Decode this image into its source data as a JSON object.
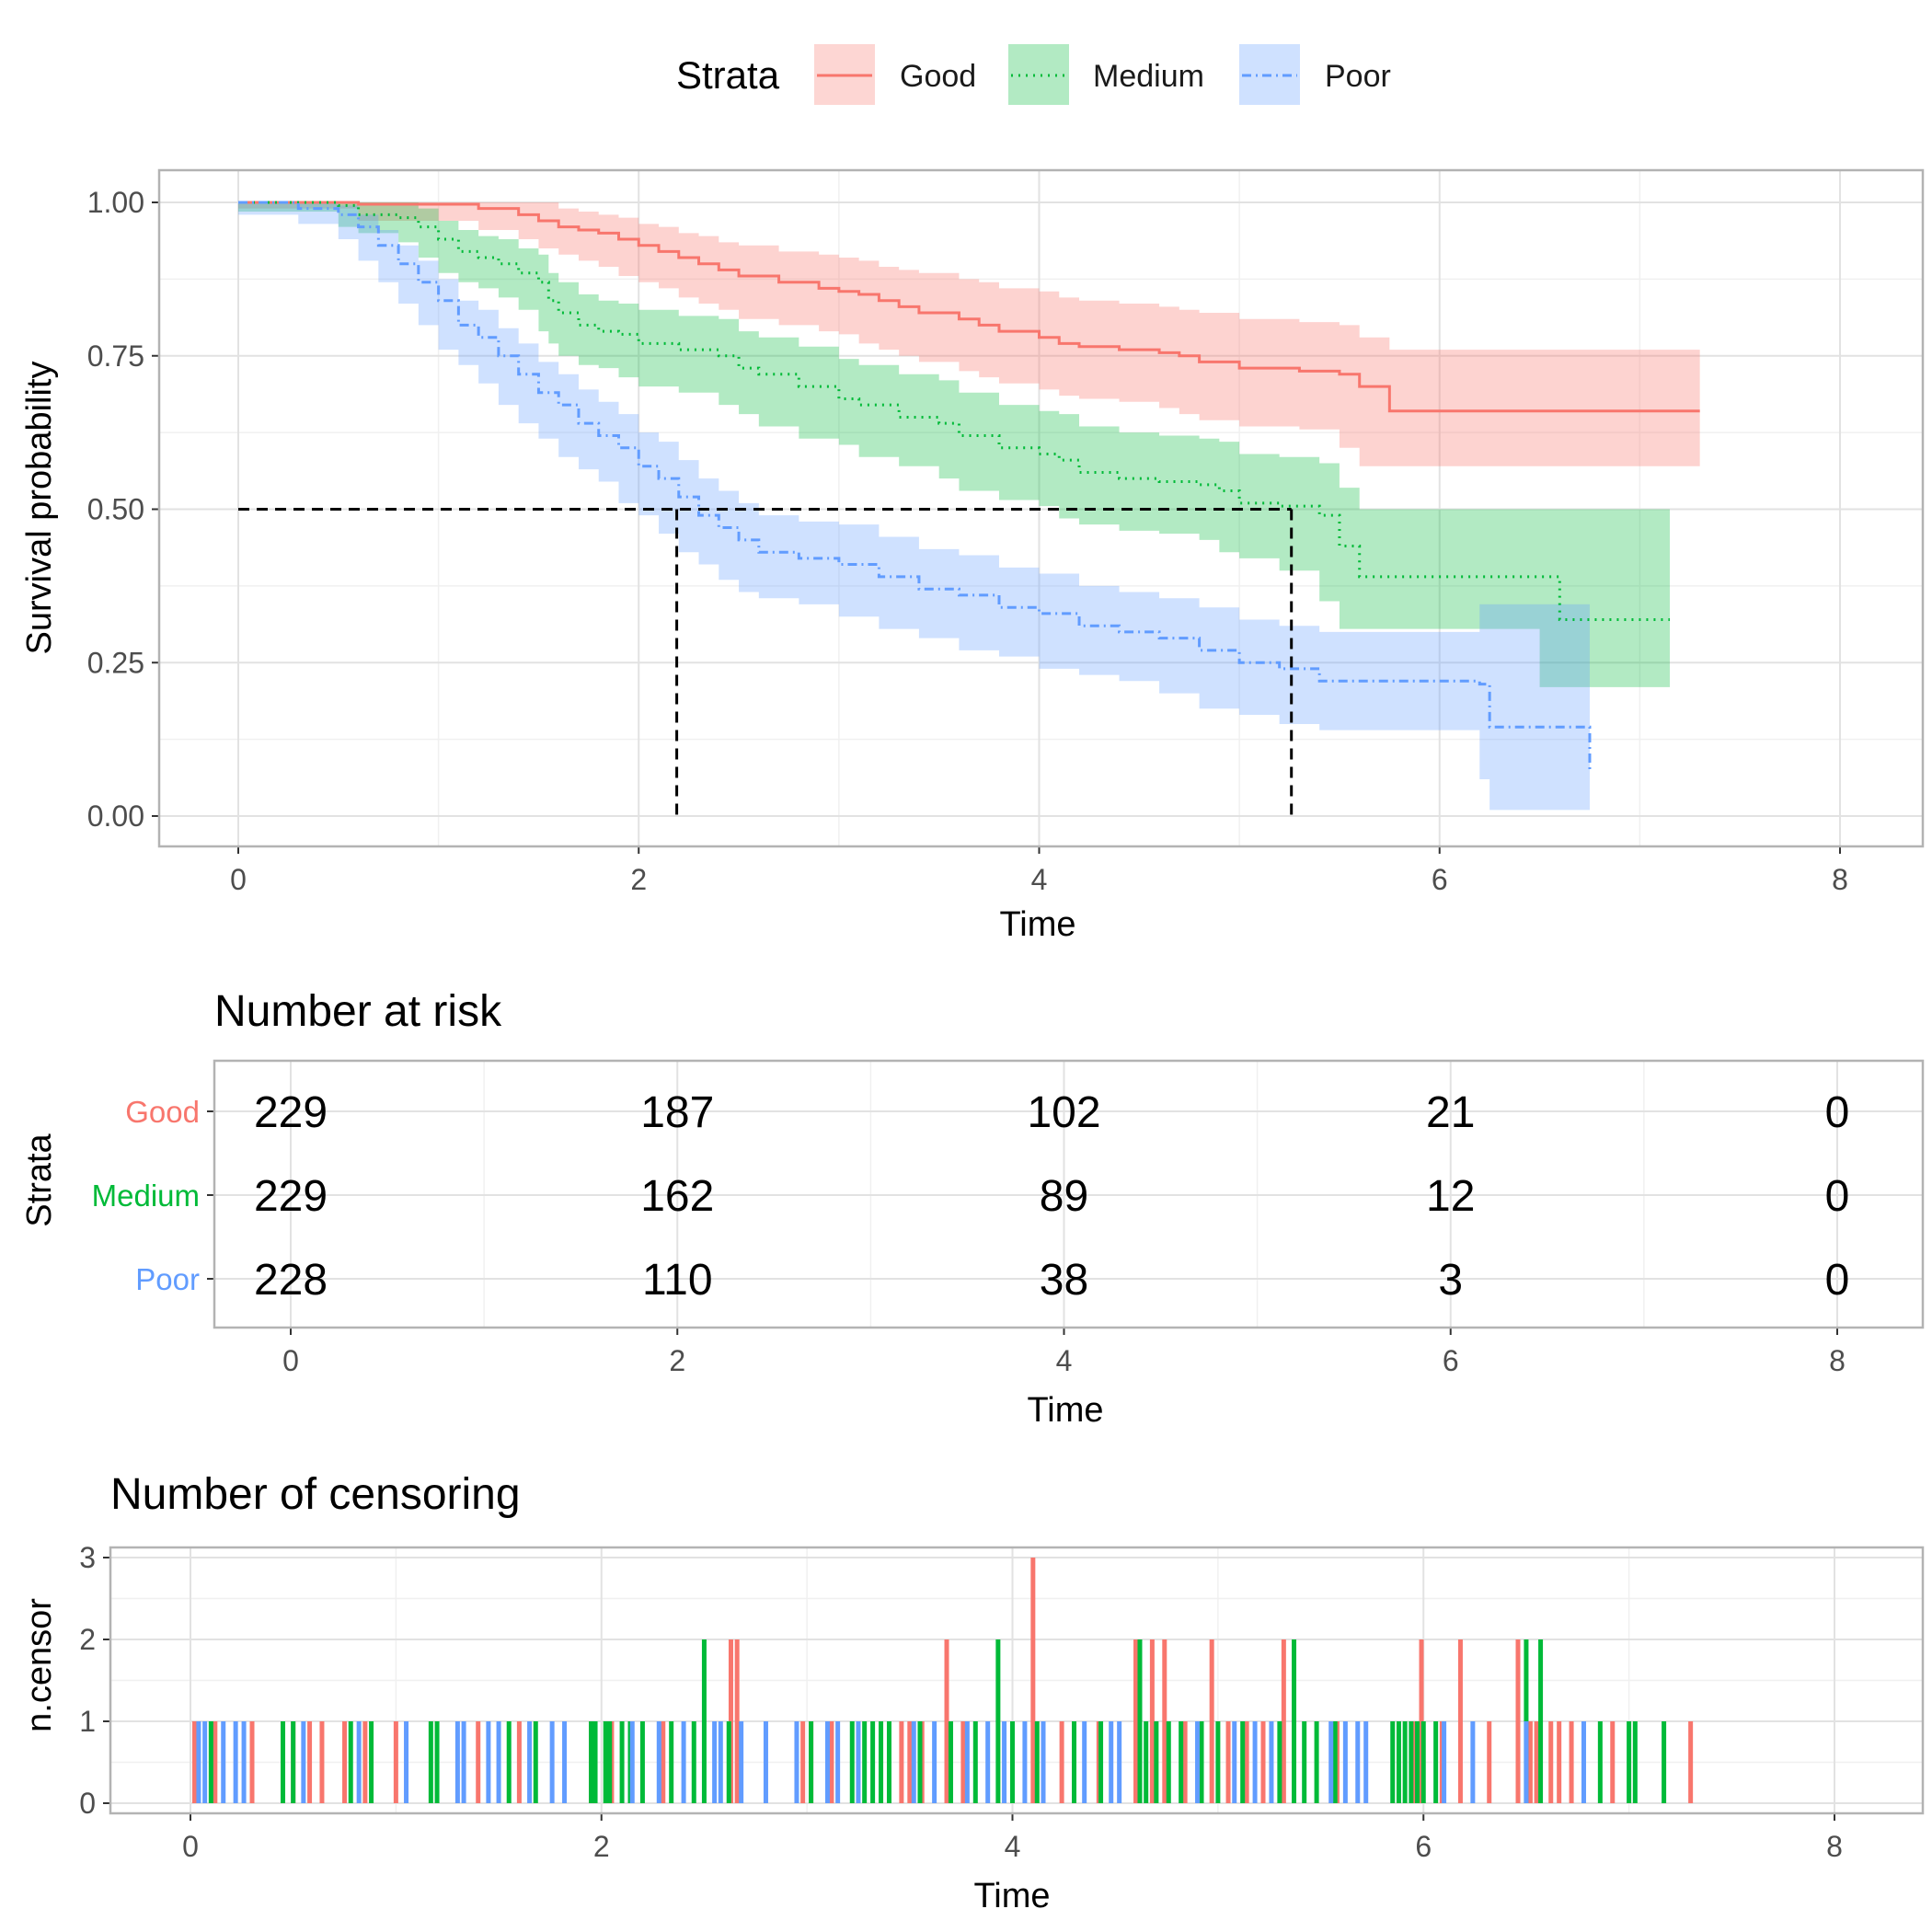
{
  "legend": {
    "title": "Strata",
    "items": [
      {
        "label": "Good",
        "color": "#F8766D",
        "linetype": "solid"
      },
      {
        "label": "Medium",
        "color": "#00BA38",
        "linetype": "dotted"
      },
      {
        "label": "Poor",
        "color": "#619CFF",
        "linetype": "dotdash"
      }
    ],
    "position": "top"
  },
  "chart_data": [
    {
      "type": "line",
      "subtype": "kaplan-meier step",
      "xlabel": "Time",
      "ylabel": "Survival probability",
      "xlim": [
        0,
        8
      ],
      "ylim": [
        0,
        1
      ],
      "x_ticks": [
        "0",
        "2",
        "4",
        "6",
        "8"
      ],
      "y_ticks": [
        "0.00",
        "0.25",
        "0.50",
        "0.75",
        "1.00"
      ],
      "grid": true,
      "median_lines": [
        {
          "x": 2.19,
          "y": 0.5
        },
        {
          "x": 5.26,
          "y": 0.5
        }
      ],
      "series": [
        {
          "name": "Good",
          "color": "#F8766D",
          "linetype": "solid",
          "x": [
            0,
            0.6,
            1.2,
            1.4,
            1.5,
            1.6,
            1.7,
            1.8,
            1.9,
            2.0,
            2.1,
            2.2,
            2.3,
            2.4,
            2.5,
            2.7,
            2.9,
            3.0,
            3.1,
            3.2,
            3.3,
            3.4,
            3.6,
            3.7,
            3.8,
            4.0,
            4.1,
            4.2,
            4.4,
            4.6,
            4.7,
            4.8,
            5.0,
            5.3,
            5.5,
            5.6,
            5.75,
            7.3
          ],
          "y": [
            1.0,
            0.997,
            0.99,
            0.98,
            0.97,
            0.96,
            0.955,
            0.95,
            0.94,
            0.93,
            0.92,
            0.91,
            0.9,
            0.89,
            0.88,
            0.87,
            0.86,
            0.855,
            0.85,
            0.84,
            0.83,
            0.82,
            0.81,
            0.8,
            0.79,
            0.78,
            0.77,
            0.765,
            0.76,
            0.755,
            0.75,
            0.74,
            0.73,
            0.725,
            0.72,
            0.7,
            0.66,
            0.66
          ],
          "lower": [
            1.0,
            0.99,
            0.97,
            0.955,
            0.94,
            0.925,
            0.915,
            0.905,
            0.895,
            0.88,
            0.87,
            0.86,
            0.845,
            0.835,
            0.825,
            0.81,
            0.8,
            0.79,
            0.785,
            0.77,
            0.76,
            0.75,
            0.74,
            0.725,
            0.715,
            0.705,
            0.695,
            0.685,
            0.68,
            0.675,
            0.665,
            0.655,
            0.645,
            0.635,
            0.63,
            0.6,
            0.57,
            0.57
          ],
          "upper": [
            1.0,
            1.0,
            1.0,
            1.0,
            1.0,
            0.99,
            0.985,
            0.98,
            0.975,
            0.965,
            0.96,
            0.95,
            0.945,
            0.935,
            0.93,
            0.92,
            0.915,
            0.91,
            0.905,
            0.895,
            0.89,
            0.885,
            0.875,
            0.87,
            0.86,
            0.855,
            0.845,
            0.84,
            0.835,
            0.83,
            0.825,
            0.82,
            0.81,
            0.805,
            0.8,
            0.78,
            0.76,
            0.76
          ]
        },
        {
          "name": "Medium",
          "color": "#00BA38",
          "linetype": "dotted",
          "x": [
            0,
            0.5,
            0.6,
            0.8,
            0.9,
            1.0,
            1.1,
            1.2,
            1.3,
            1.4,
            1.5,
            1.55,
            1.6,
            1.7,
            1.8,
            1.9,
            2.0,
            2.2,
            2.4,
            2.5,
            2.6,
            2.8,
            3.0,
            3.1,
            3.3,
            3.5,
            3.6,
            3.8,
            4.0,
            4.1,
            4.2,
            4.4,
            4.6,
            4.8,
            4.9,
            5.0,
            5.2,
            5.4,
            5.5,
            5.6,
            6.5,
            6.6,
            7.15
          ],
          "y": [
            1.0,
            0.995,
            0.98,
            0.975,
            0.96,
            0.94,
            0.92,
            0.91,
            0.9,
            0.885,
            0.87,
            0.84,
            0.82,
            0.8,
            0.79,
            0.785,
            0.77,
            0.76,
            0.75,
            0.73,
            0.72,
            0.7,
            0.68,
            0.67,
            0.65,
            0.64,
            0.62,
            0.6,
            0.59,
            0.58,
            0.56,
            0.55,
            0.545,
            0.54,
            0.53,
            0.51,
            0.505,
            0.49,
            0.44,
            0.39,
            0.39,
            0.32,
            0.32
          ],
          "lower": [
            1.0,
            0.985,
            0.96,
            0.95,
            0.935,
            0.91,
            0.885,
            0.87,
            0.86,
            0.845,
            0.825,
            0.79,
            0.77,
            0.75,
            0.735,
            0.73,
            0.715,
            0.7,
            0.69,
            0.67,
            0.655,
            0.635,
            0.615,
            0.605,
            0.585,
            0.57,
            0.55,
            0.53,
            0.515,
            0.505,
            0.485,
            0.475,
            0.465,
            0.46,
            0.45,
            0.43,
            0.42,
            0.4,
            0.35,
            0.305,
            0.305,
            0.21,
            0.21
          ],
          "upper": [
            1.0,
            1.0,
            1.0,
            1.0,
            0.99,
            0.97,
            0.955,
            0.945,
            0.94,
            0.925,
            0.915,
            0.885,
            0.87,
            0.85,
            0.84,
            0.835,
            0.825,
            0.815,
            0.81,
            0.79,
            0.78,
            0.765,
            0.745,
            0.735,
            0.72,
            0.71,
            0.69,
            0.67,
            0.66,
            0.655,
            0.635,
            0.625,
            0.62,
            0.615,
            0.61,
            0.59,
            0.585,
            0.575,
            0.535,
            0.5,
            0.5,
            0.5,
            0.5
          ]
        },
        {
          "name": "Poor",
          "color": "#619CFF",
          "linetype": "dotdash",
          "x": [
            0,
            0.3,
            0.5,
            0.6,
            0.7,
            0.8,
            0.9,
            1.0,
            1.1,
            1.2,
            1.3,
            1.4,
            1.5,
            1.6,
            1.7,
            1.8,
            1.9,
            2.0,
            2.1,
            2.2,
            2.3,
            2.4,
            2.5,
            2.6,
            2.8,
            3.0,
            3.2,
            3.4,
            3.6,
            3.8,
            4.0,
            4.2,
            4.4,
            4.6,
            4.8,
            5.0,
            5.2,
            5.4,
            6.2,
            6.25,
            6.75
          ],
          "y": [
            1.0,
            0.99,
            0.98,
            0.96,
            0.93,
            0.9,
            0.87,
            0.84,
            0.8,
            0.78,
            0.75,
            0.72,
            0.69,
            0.67,
            0.64,
            0.62,
            0.6,
            0.57,
            0.55,
            0.52,
            0.49,
            0.47,
            0.45,
            0.43,
            0.42,
            0.41,
            0.39,
            0.37,
            0.36,
            0.34,
            0.33,
            0.31,
            0.3,
            0.29,
            0.27,
            0.25,
            0.24,
            0.22,
            0.215,
            0.145,
            0.07
          ],
          "lower": [
            1.0,
            0.98,
            0.965,
            0.94,
            0.905,
            0.87,
            0.835,
            0.8,
            0.76,
            0.735,
            0.705,
            0.67,
            0.64,
            0.615,
            0.585,
            0.565,
            0.545,
            0.51,
            0.49,
            0.46,
            0.43,
            0.41,
            0.385,
            0.365,
            0.355,
            0.345,
            0.325,
            0.305,
            0.29,
            0.27,
            0.26,
            0.24,
            0.23,
            0.22,
            0.2,
            0.175,
            0.165,
            0.15,
            0.14,
            0.06,
            0.01
          ],
          "upper": [
            1.0,
            1.0,
            0.995,
            0.98,
            0.955,
            0.93,
            0.905,
            0.875,
            0.84,
            0.825,
            0.795,
            0.77,
            0.74,
            0.72,
            0.695,
            0.675,
            0.655,
            0.625,
            0.61,
            0.58,
            0.55,
            0.53,
            0.51,
            0.49,
            0.48,
            0.475,
            0.455,
            0.435,
            0.425,
            0.405,
            0.395,
            0.375,
            0.365,
            0.355,
            0.34,
            0.32,
            0.31,
            0.3,
            0.345,
            0.345,
            0.375
          ]
        }
      ]
    },
    {
      "type": "table",
      "title": "Number at risk",
      "xlabel": "Time",
      "ylabel": "Strata",
      "x": [
        0,
        2,
        4,
        6,
        8
      ],
      "x_ticks": [
        "0",
        "2",
        "4",
        "6",
        "8"
      ],
      "rows": [
        {
          "label": "Good",
          "color": "#F8766D",
          "values": [
            "229",
            "187",
            "102",
            "21",
            "0"
          ]
        },
        {
          "label": "Medium",
          "color": "#00BA38",
          "values": [
            "229",
            "162",
            "89",
            "12",
            "0"
          ]
        },
        {
          "label": "Poor",
          "color": "#619CFF",
          "values": [
            "228",
            "110",
            "38",
            "3",
            "0"
          ]
        }
      ]
    },
    {
      "type": "bar",
      "subtype": "censoring events",
      "title": "Number of censoring",
      "xlabel": "Time",
      "ylabel": "n.censor",
      "xlim": [
        0,
        8
      ],
      "ylim": [
        0,
        3
      ],
      "x_ticks": [
        "0",
        "2",
        "4",
        "6",
        "8"
      ],
      "y_ticks": [
        "0",
        "1",
        "2",
        "3"
      ],
      "series": [
        {
          "name": "Good",
          "color": "#F8766D",
          "x": [
            0.02,
            0.12,
            0.3,
            0.5,
            0.58,
            0.64,
            0.75,
            0.85,
            1.0,
            1.4,
            1.6,
            1.95,
            2.05,
            2.3,
            2.63,
            2.66,
            2.98,
            3.02,
            3.12,
            3.46,
            3.5,
            3.56,
            3.68,
            3.76,
            4.1,
            4.24,
            4.42,
            4.6,
            4.68,
            4.74,
            4.84,
            4.97,
            5.05,
            5.14,
            5.22,
            5.32,
            5.58,
            5.95,
            5.97,
            5.99,
            6.09,
            6.18,
            6.32,
            6.46,
            6.52,
            6.55,
            6.62,
            6.66,
            6.72,
            6.92,
            7.3
          ],
          "y": [
            1,
            1,
            1,
            1,
            1,
            1,
            1,
            1,
            1,
            1,
            1,
            1,
            1,
            1,
            2,
            2,
            1,
            1,
            1,
            1,
            1,
            1,
            2,
            1,
            3,
            1,
            1,
            2,
            2,
            2,
            1,
            2,
            1,
            1,
            1,
            2,
            1,
            1,
            1,
            2,
            1,
            2,
            1,
            2,
            1,
            1,
            1,
            1,
            1,
            1,
            1
          ]
        },
        {
          "name": "Medium",
          "color": "#00BA38",
          "x": [
            0.1,
            0.45,
            0.5,
            0.78,
            0.88,
            1.17,
            1.2,
            1.55,
            1.68,
            1.95,
            1.97,
            2.02,
            2.04,
            2.1,
            2.14,
            2.2,
            2.34,
            2.45,
            2.5,
            2.62,
            3.02,
            3.22,
            3.28,
            3.32,
            3.36,
            3.4,
            3.55,
            3.7,
            3.82,
            3.93,
            4.0,
            4.12,
            4.3,
            4.43,
            4.62,
            4.65,
            4.7,
            4.76,
            4.82,
            4.92,
            5.0,
            5.12,
            5.3,
            5.37,
            5.42,
            5.48,
            5.57,
            5.85,
            5.88,
            5.91,
            5.94,
            5.97,
            6.0,
            6.06,
            6.5,
            6.57,
            6.86,
            7.0,
            7.03,
            7.17
          ],
          "y": [
            1,
            1,
            1,
            1,
            1,
            1,
            1,
            1,
            1,
            1,
            1,
            1,
            1,
            1,
            1,
            1,
            1,
            1,
            2,
            1,
            1,
            1,
            1,
            1,
            1,
            1,
            1,
            1,
            1,
            2,
            1,
            1,
            1,
            1,
            2,
            1,
            1,
            1,
            1,
            1,
            1,
            1,
            1,
            2,
            1,
            1,
            1,
            1,
            1,
            1,
            1,
            1,
            1,
            1,
            2,
            2,
            1,
            1,
            1,
            1
          ]
        },
        {
          "name": "Poor",
          "color": "#619CFF",
          "x": [
            0.04,
            0.07,
            0.16,
            0.22,
            0.26,
            0.55,
            0.82,
            1.05,
            1.3,
            1.33,
            1.45,
            1.5,
            1.65,
            1.76,
            1.82,
            2.15,
            2.28,
            2.4,
            2.55,
            2.58,
            2.68,
            2.8,
            2.95,
            3.1,
            3.15,
            3.25,
            3.52,
            3.62,
            3.78,
            3.88,
            3.96,
            4.06,
            4.15,
            4.35,
            4.48,
            4.52,
            4.9,
            5.08,
            5.18,
            5.26,
            5.55,
            5.62,
            5.68,
            5.72,
            6.1,
            6.24,
            6.5,
            6.78
          ],
          "y": [
            1,
            1,
            1,
            1,
            1,
            1,
            1,
            1,
            1,
            1,
            1,
            1,
            1,
            1,
            1,
            1,
            1,
            1,
            1,
            1,
            1,
            1,
            1,
            1,
            1,
            1,
            1,
            1,
            1,
            1,
            1,
            1,
            1,
            1,
            1,
            1,
            1,
            1,
            1,
            1,
            1,
            1,
            1,
            1,
            1,
            1,
            1,
            1
          ]
        }
      ]
    }
  ]
}
